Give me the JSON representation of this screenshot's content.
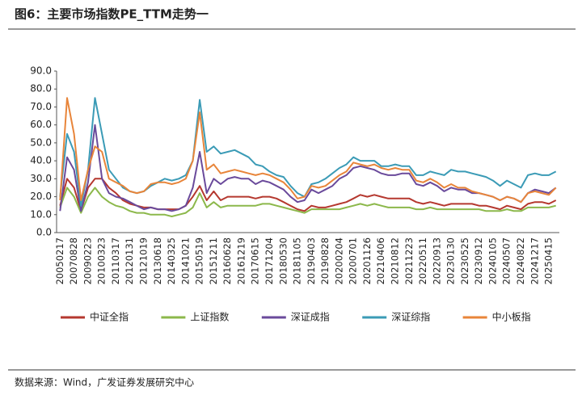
{
  "chart_data": {
    "type": "line",
    "title": "图6：主要市场指数PE_TTM走势一",
    "source": "数据来源：Wind，广发证券发展研究中心",
    "legend": "bottom",
    "categories": [
      "20050217",
      null,
      "20070828",
      null,
      "20090223",
      null,
      "20100323",
      null,
      "20110317",
      null,
      "20120131",
      null,
      "20121019",
      null,
      "20130618",
      null,
      "20140325",
      null,
      "20141021",
      null,
      "20150519",
      null,
      "20151211",
      null,
      "20160628",
      null,
      "20161219",
      null,
      "20170615",
      null,
      "20171204",
      null,
      "20180530",
      null,
      "20181105",
      null,
      "20190403",
      null,
      "20190828",
      null,
      "20200204",
      null,
      "20200701",
      null,
      "20201126",
      null,
      "20210406",
      null,
      "20210812",
      null,
      "20211223",
      null,
      "20220511",
      null,
      "20220913",
      null,
      "20230130",
      null,
      "20230525",
      null,
      "20230912",
      null,
      "20240105",
      null,
      "20240507",
      null,
      "20240822",
      null,
      "20241217",
      null,
      "20250415",
      null
    ],
    "ylim": [
      0,
      90
    ],
    "yticks": [
      {
        "value": 0,
        "label": "0.0"
      },
      {
        "value": 10,
        "label": "10.0"
      },
      {
        "value": 20,
        "label": "20.0"
      },
      {
        "value": 30,
        "label": "30.0"
      },
      {
        "value": 40,
        "label": "40.0"
      },
      {
        "value": 50,
        "label": "50.0"
      },
      {
        "value": 60,
        "label": "60.0"
      },
      {
        "value": 70,
        "label": "70.0"
      },
      {
        "value": 80,
        "label": "80.0"
      },
      {
        "value": 90,
        "label": "90.0"
      }
    ],
    "series": [
      {
        "name": "中证全指",
        "color": "#b5382f",
        "values": [
          15,
          30,
          25,
          12,
          25,
          30,
          30,
          25,
          22,
          18,
          16,
          15,
          14,
          14,
          13,
          13,
          13,
          13,
          15,
          20,
          26,
          18,
          23,
          18,
          20,
          20,
          20,
          20,
          19,
          20,
          20,
          19,
          17,
          15,
          13,
          12,
          15,
          14,
          14,
          15,
          16,
          17,
          19,
          21,
          20,
          21,
          20,
          19,
          19,
          19,
          19,
          17,
          16,
          17,
          16,
          15,
          16,
          16,
          16,
          16,
          15,
          15,
          14,
          13,
          15,
          14,
          13,
          16,
          17,
          17,
          16,
          18
        ]
      },
      {
        "name": "上证指数",
        "color": "#8cb84b",
        "values": [
          14,
          25,
          20,
          11,
          20,
          25,
          20,
          17,
          15,
          14,
          12,
          11,
          11,
          10,
          10,
          10,
          9,
          10,
          11,
          14,
          22,
          14,
          17,
          14,
          15,
          15,
          15,
          15,
          15,
          16,
          16,
          15,
          14,
          13,
          12,
          11,
          13,
          13,
          13,
          13,
          13,
          14,
          15,
          16,
          15,
          16,
          15,
          14,
          14,
          14,
          14,
          13,
          13,
          14,
          13,
          13,
          13,
          13,
          13,
          13,
          13,
          12,
          12,
          12,
          13,
          12,
          12,
          14,
          14,
          14,
          14,
          15
        ]
      },
      {
        "name": "深证成指",
        "color": "#6a4a9b",
        "values": [
          12,
          42,
          35,
          12,
          28,
          60,
          30,
          22,
          20,
          19,
          17,
          15,
          13,
          14,
          13,
          13,
          12,
          13,
          15,
          25,
          45,
          22,
          30,
          27,
          30,
          31,
          30,
          30,
          27,
          29,
          28,
          26,
          24,
          20,
          17,
          18,
          24,
          22,
          24,
          26,
          30,
          32,
          36,
          37,
          36,
          35,
          33,
          32,
          32,
          33,
          33,
          27,
          26,
          28,
          26,
          23,
          25,
          24,
          24,
          22,
          22,
          21,
          20,
          18,
          20,
          19,
          17,
          22,
          24,
          23,
          22,
          25
        ]
      },
      {
        "name": "深证综指",
        "color": "#3b9bb6",
        "values": [
          20,
          55,
          45,
          15,
          35,
          75,
          55,
          35,
          30,
          25,
          23,
          22,
          23,
          26,
          28,
          30,
          29,
          30,
          32,
          40,
          74,
          45,
          48,
          44,
          45,
          46,
          44,
          42,
          38,
          37,
          34,
          32,
          31,
          26,
          22,
          20,
          27,
          28,
          30,
          33,
          36,
          38,
          42,
          40,
          40,
          40,
          37,
          37,
          38,
          37,
          37,
          32,
          32,
          34,
          33,
          32,
          35,
          34,
          34,
          33,
          32,
          31,
          29,
          26,
          29,
          27,
          25,
          32,
          33,
          32,
          32,
          34
        ]
      },
      {
        "name": "中小板指",
        "color": "#e8853a",
        "values": [
          18,
          75,
          55,
          18,
          35,
          48,
          45,
          30,
          28,
          26,
          23,
          22,
          23,
          27,
          28,
          28,
          27,
          28,
          30,
          40,
          67,
          35,
          38,
          33,
          34,
          35,
          34,
          33,
          32,
          33,
          32,
          30,
          28,
          24,
          19,
          20,
          26,
          25,
          26,
          29,
          32,
          34,
          39,
          38,
          37,
          38,
          36,
          35,
          36,
          35,
          35,
          29,
          28,
          30,
          28,
          25,
          27,
          25,
          25,
          23,
          22,
          21,
          20,
          18,
          20,
          19,
          17,
          22,
          23,
          22,
          21,
          25
        ]
      }
    ]
  }
}
